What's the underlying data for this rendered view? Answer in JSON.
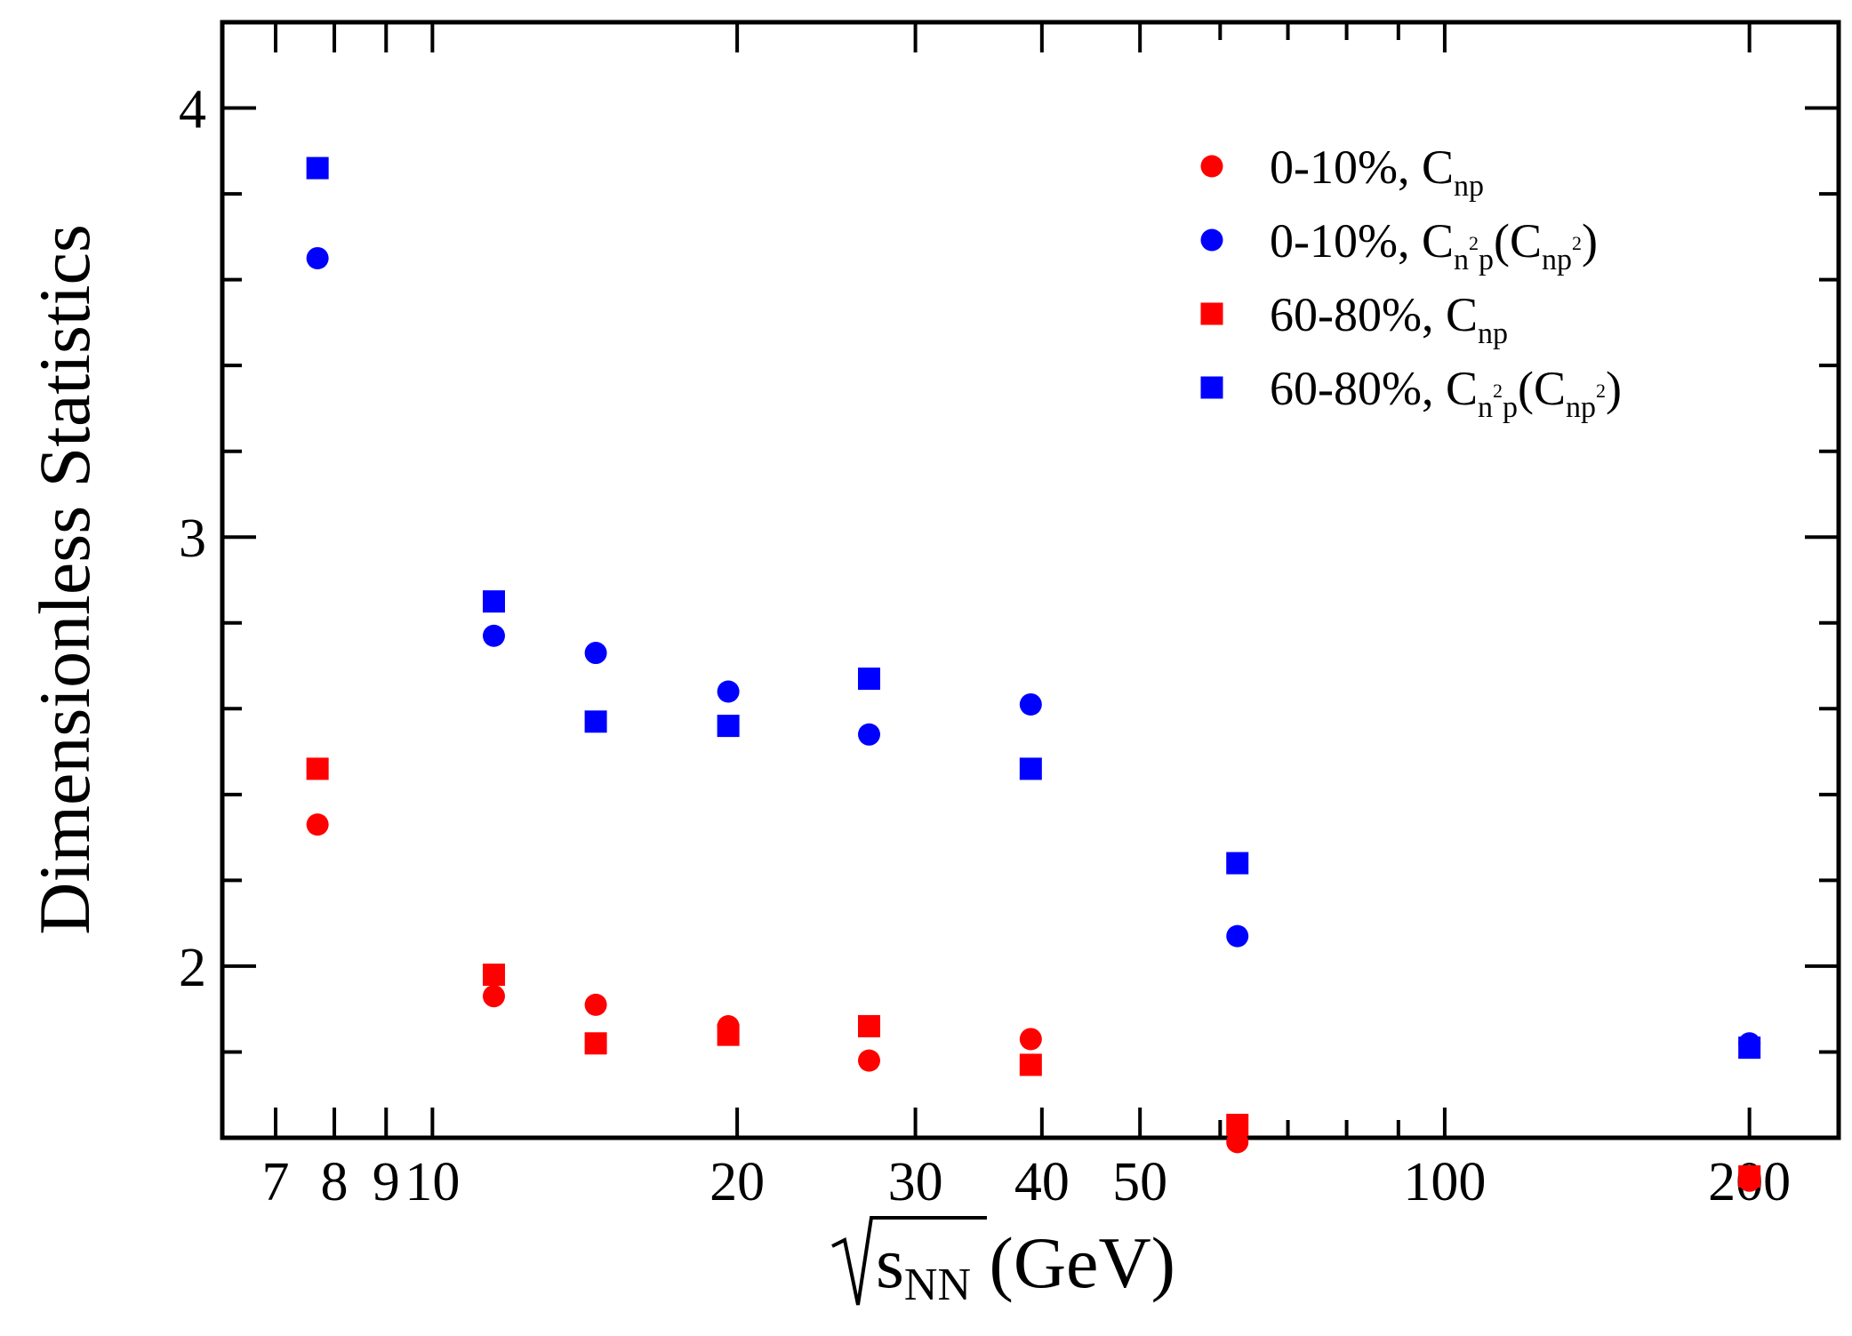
{
  "chart_data": {
    "type": "scatter",
    "ylabel": "Dimensionless Statistics",
    "xlabel_parts": {
      "radical_base": "s",
      "sub": "NN",
      "unit": " (GeV)"
    },
    "x_scale": "log",
    "xlim": [
      6.2,
      245
    ],
    "ylim": [
      1.6,
      4.2
    ],
    "x_ticks": [
      7,
      8,
      9,
      10,
      20,
      30,
      40,
      50,
      100,
      200
    ],
    "x_tick_labels": [
      "7",
      "8",
      "9",
      "10",
      "20",
      "30",
      "40",
      "50",
      "100",
      "200"
    ],
    "x_minor_ticks": [
      60,
      70,
      80,
      90
    ],
    "y_ticks": [
      2,
      3,
      4
    ],
    "y_tick_labels": [
      "2",
      "3",
      "4"
    ],
    "y_minor_ticks": [
      1.6,
      1.8,
      2.2,
      2.4,
      2.6,
      2.8,
      3.2,
      3.4,
      3.6,
      3.8
    ],
    "legend_position": "top-right",
    "series": [
      {
        "name": "0-10%, C_np",
        "legend": {
          "main": "0-10%, C",
          "sub": "np"
        },
        "marker": "circle",
        "color": "#ff0000",
        "points": [
          [
            7.7,
            2.33
          ],
          [
            11.5,
            1.93
          ],
          [
            14.5,
            1.91
          ],
          [
            19.6,
            1.86
          ],
          [
            27,
            1.78
          ],
          [
            39,
            1.83
          ],
          [
            62.4,
            1.59
          ],
          [
            200,
            1.5
          ]
        ]
      },
      {
        "name": "0-10%, C_n2p(C_np2)",
        "legend": {
          "main": "0-10%, C",
          "sub1": "n",
          "sup1": "2",
          "sub1b": "p",
          "paren_open": "(C",
          "sub2": "np",
          "sup2": "2",
          "paren_close": ")"
        },
        "marker": "circle",
        "color": "#0000ff",
        "points": [
          [
            7.7,
            3.65
          ],
          [
            11.5,
            2.77
          ],
          [
            14.5,
            2.73
          ],
          [
            19.6,
            2.64
          ],
          [
            27,
            2.54
          ],
          [
            39,
            2.61
          ],
          [
            62.4,
            2.07
          ],
          [
            200,
            1.82
          ]
        ]
      },
      {
        "name": "60-80%, C_np",
        "legend": {
          "main": "60-80%, C",
          "sub": "np"
        },
        "marker": "square",
        "color": "#ff0000",
        "points": [
          [
            7.7,
            2.46
          ],
          [
            11.5,
            1.98
          ],
          [
            14.5,
            1.82
          ],
          [
            19.6,
            1.84
          ],
          [
            27,
            1.86
          ],
          [
            39,
            1.77
          ],
          [
            62.4,
            1.63
          ],
          [
            200,
            1.51
          ]
        ]
      },
      {
        "name": "60-80%, C_n2p(C_np2)",
        "legend": {
          "main": "60-80%, C",
          "sub1": "n",
          "sup1": "2",
          "sub1b": "p",
          "paren_open": "(C",
          "sub2": "np",
          "sup2": "2",
          "paren_close": ")"
        },
        "marker": "square",
        "color": "#0000ff",
        "points": [
          [
            7.7,
            3.86
          ],
          [
            11.5,
            2.85
          ],
          [
            14.5,
            2.57
          ],
          [
            19.6,
            2.56
          ],
          [
            27,
            2.67
          ],
          [
            39,
            2.46
          ],
          [
            62.4,
            2.24
          ],
          [
            200,
            1.81
          ]
        ]
      }
    ]
  }
}
